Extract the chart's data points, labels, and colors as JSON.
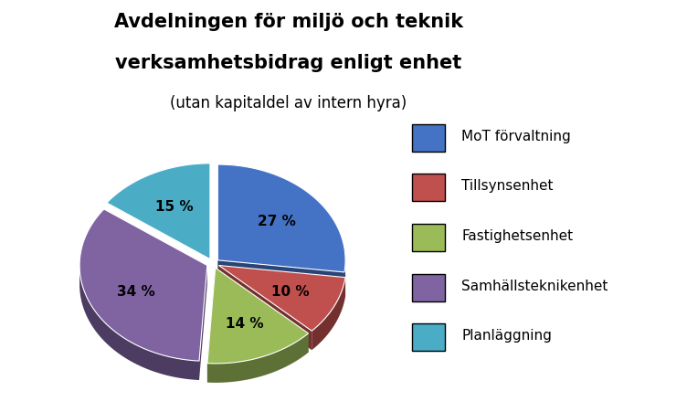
{
  "title_line1": "Avdelningen för miljö och teknik",
  "title_line2": "verksamhetsbidrag enligt enhet",
  "subtitle": "(utan kapitaldel av intern hyra)",
  "labels": [
    "MoT förvaltning",
    "Tillsynsenhet",
    "Fastighetsenhet",
    "Samhällsteknikenhet",
    "Planläggning"
  ],
  "values": [
    27,
    10,
    14,
    34,
    15
  ],
  "colors": [
    "#4472C4",
    "#C0504D",
    "#9BBB59",
    "#8064A2",
    "#4BACC6"
  ],
  "explode": [
    0.05,
    0.05,
    0.05,
    0.05,
    0.05
  ],
  "pct_labels": [
    "27 %",
    "10 %",
    "14 %",
    "34 %",
    "15 %"
  ],
  "start_angle": 90,
  "background_color": "#FFFFFF",
  "title_fontsize": 15,
  "subtitle_fontsize": 12,
  "label_fontsize": 11,
  "legend_fontsize": 11
}
